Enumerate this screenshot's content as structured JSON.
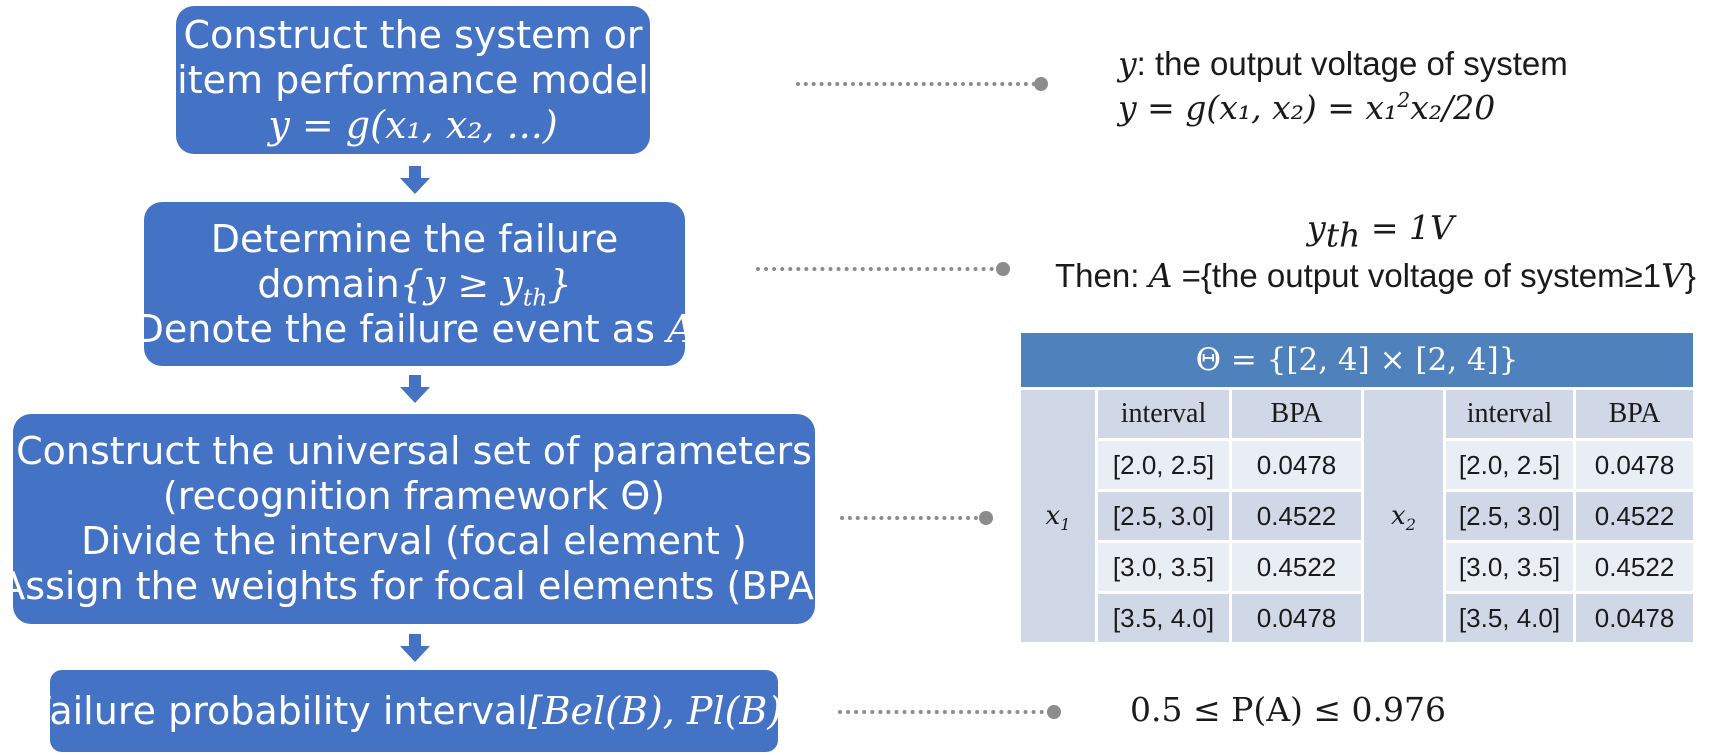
{
  "flow": {
    "step1": {
      "line1": "Construct the system or",
      "line2": "item performance model",
      "formula": "y = g(x₁, x₂, ...)"
    },
    "step2": {
      "line1": "Determine the failure",
      "line2_text": "domain",
      "line2_formula": "{y ≥ y",
      "line2_sub": "th",
      "line2_close": "}",
      "line3_text": "Denote the failure event as ",
      "line3_var": "A"
    },
    "step3": {
      "line1": "Construct the universal set of parameters",
      "line2": "(recognition framework Θ)",
      "line3": "Divide the interval  (focal element )",
      "line4": "Assign the weights for focal elements  (BPA)"
    },
    "step4": {
      "text": "Failure probability interval",
      "formula": "[Bel(B), Pl(B)]"
    }
  },
  "annotations": {
    "a1": {
      "var": "y",
      "text": ": the output voltage of system",
      "formula_lhs": "y = g(x₁, x₂) = x₁",
      "formula_sup": "2",
      "formula_rhs": "x₂/20"
    },
    "a2": {
      "var": "y",
      "sub": "th",
      "value": " = 1V",
      "then_label": "Then: ",
      "set_var": "A",
      "set_text": " ={the output voltage of system≥1",
      "set_unit": "V",
      "set_close": "}"
    },
    "a4": {
      "formula": "0.5 ≤ P(A) ≤ 0.976"
    }
  },
  "table": {
    "header": "Θ = {[2, 4] × [2, 4]}",
    "col_interval": "interval",
    "col_bpa": "BPA",
    "var1": "x",
    "var1_sub": "1",
    "var2": "x",
    "var2_sub": "2",
    "rows": [
      {
        "i1": "[2.0, 2.5]",
        "b1": "0.0478",
        "i2": "[2.0, 2.5]",
        "b2": "0.0478"
      },
      {
        "i1": "[2.5, 3.0]",
        "b1": "0.4522",
        "i2": "[2.5, 3.0]",
        "b2": "0.4522"
      },
      {
        "i1": "[3.0, 3.5]",
        "b1": "0.4522",
        "i2": "[3.0, 3.5]",
        "b2": "0.4522"
      },
      {
        "i1": "[3.5, 4.0]",
        "b1": "0.0478",
        "i2": "[3.5, 4.0]",
        "b2": "0.0478"
      }
    ]
  },
  "colors": {
    "box": "#4472c4",
    "table_header": "#4f81bd",
    "table_light": "#e9edf4",
    "table_mid": "#d0d8e8",
    "connector": "#8c8c8c"
  }
}
